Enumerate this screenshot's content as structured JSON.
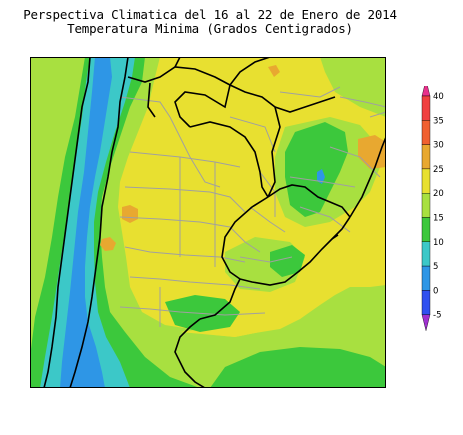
{
  "title": {
    "line1": "Perspectiva Climatica del 16 al 22 de Enero de 2014",
    "line2": "Temperatura Minima (Grados Centigrados)"
  },
  "map": {
    "region": "Argentina, Uruguay, Paraguay y sur de Brasil",
    "colors": {
      "background_20_25": "#e8e030",
      "band_15_20": "#a8e040",
      "band_10_15": "#3cc83c",
      "band_5_10": "#3cc8c8",
      "band_0_5": "#2e96e6",
      "band_25_30": "#e8a830",
      "border": "#000000",
      "province_lines": "#a0a0a0"
    }
  },
  "legend": {
    "ticks": [
      "40",
      "35",
      "30",
      "25",
      "20",
      "15",
      "10",
      "5",
      "0",
      "-5"
    ],
    "bands": [
      {
        "range": "above 40",
        "color": "#e8308c"
      },
      {
        "range": "35-40",
        "color": "#f04040"
      },
      {
        "range": "30-35",
        "color": "#f06030"
      },
      {
        "range": "25-30",
        "color": "#e8a830"
      },
      {
        "range": "20-25",
        "color": "#e8e030"
      },
      {
        "range": "15-20",
        "color": "#a8e040"
      },
      {
        "range": "10-15",
        "color": "#3cc83c"
      },
      {
        "range": "5-10",
        "color": "#3cc8c8"
      },
      {
        "range": "0-5",
        "color": "#2e96e6"
      },
      {
        "range": "-5-0",
        "color": "#3050f0"
      },
      {
        "range": "below -5",
        "color": "#a030d0"
      }
    ]
  }
}
